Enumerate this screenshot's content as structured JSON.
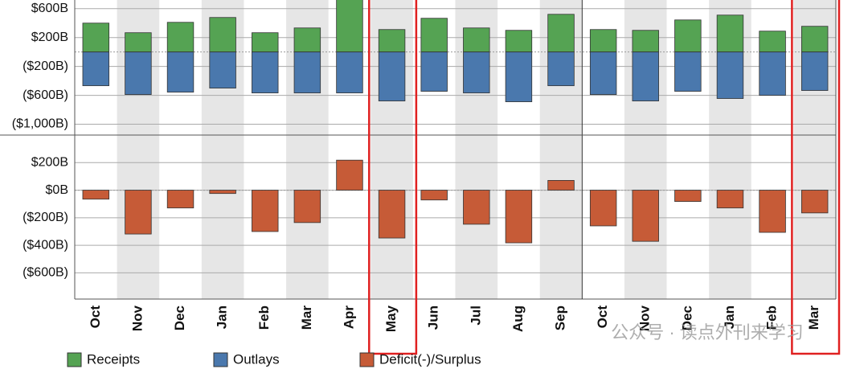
{
  "chart_data": [
    {
      "type": "bar",
      "categories": [
        "Oct",
        "Nov",
        "Dec",
        "Jan",
        "Feb",
        "Mar",
        "Apr",
        "May",
        "Jun",
        "Jul",
        "Aug",
        "Sep",
        "Oct",
        "Nov",
        "Dec",
        "Jan",
        "Feb",
        "Mar"
      ],
      "series": [
        {
          "name": "Receipts",
          "color": "#55a353",
          "values": [
            400,
            267,
            411,
            478,
            267,
            333,
            770,
            311,
            467,
            333,
            300,
            522,
            311,
            300,
            444,
            511,
            289,
            356
          ]
        },
        {
          "name": "Outlays",
          "color": "#4a78ad",
          "values": [
            -467,
            -589,
            -556,
            -500,
            -567,
            -567,
            -567,
            -678,
            -544,
            -567,
            -689,
            -467,
            -589,
            -678,
            -544,
            -644,
            -600,
            -533
          ]
        }
      ],
      "ylim": [
        -1150,
        720
      ],
      "yticks": [
        {
          "value": 600,
          "label": "$600B"
        },
        {
          "value": 200,
          "label": "$200B"
        },
        {
          "value": -200,
          "label": "($200B)"
        },
        {
          "value": -600,
          "label": "($600B)"
        },
        {
          "value": -1000,
          "label": "($1,000B)"
        }
      ],
      "grid": true,
      "highlight": [
        7,
        17
      ],
      "divider_after": 11
    },
    {
      "type": "bar",
      "categories": [
        "Oct",
        "Nov",
        "Dec",
        "Jan",
        "Feb",
        "Mar",
        "Apr",
        "May",
        "Jun",
        "Jul",
        "Aug",
        "Sep",
        "Oct",
        "Nov",
        "Dec",
        "Jan",
        "Feb",
        "Mar"
      ],
      "series": [
        {
          "name": "Deficit(-)/Surplus",
          "color": "#c65b37",
          "values": [
            -65,
            -318,
            -129,
            -24,
            -300,
            -235,
            218,
            -347,
            -71,
            -247,
            -382,
            71,
            -259,
            -371,
            -82,
            -129,
            -306,
            -165
          ]
        }
      ],
      "ylim": [
        -790,
        400
      ],
      "yticks": [
        {
          "value": 200,
          "label": "$200B"
        },
        {
          "value": 0,
          "label": "$0B"
        },
        {
          "value": -200,
          "label": "($200B)"
        },
        {
          "value": -400,
          "label": "($400B)"
        },
        {
          "value": -600,
          "label": "($600B)"
        }
      ],
      "grid": true,
      "highlight": [
        7,
        17
      ],
      "divider_after": 11
    }
  ],
  "watermark": "公众号 · 读点外刊来学习"
}
